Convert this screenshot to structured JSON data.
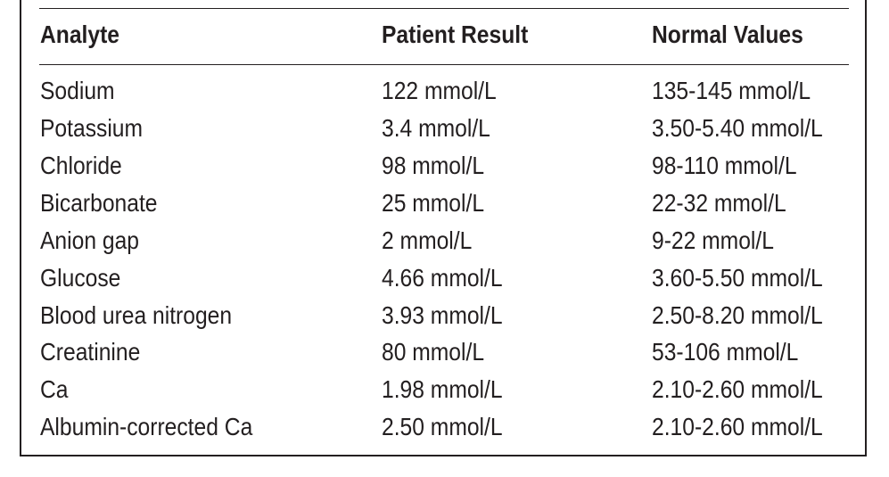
{
  "table": {
    "headers": [
      "Analyte",
      "Patient Result",
      "Normal Values"
    ],
    "rows": [
      [
        "Sodium",
        "122 mmol/L",
        "135-145 mmol/L"
      ],
      [
        "Potassium",
        "3.4 mmol/L",
        "3.50-5.40 mmol/L"
      ],
      [
        "Chloride",
        "98 mmol/L",
        "98-110 mmol/L"
      ],
      [
        "Bicarbonate",
        "25 mmol/L",
        "22-32 mmol/L"
      ],
      [
        "Anion gap",
        "2 mmol/L",
        "9-22 mmol/L"
      ],
      [
        "Glucose",
        "4.66 mmol/L",
        "3.60-5.50 mmol/L"
      ],
      [
        "Blood urea nitrogen",
        "3.93 mmol/L",
        "2.50-8.20 mmol/L"
      ],
      [
        "Creatinine",
        "80 mmol/L",
        "53-106 mmol/L"
      ],
      [
        "Ca",
        "1.98 mmol/L",
        "2.10-2.60 mmol/L"
      ],
      [
        "Albumin-corrected Ca",
        "2.50 mmol/L",
        "2.10-2.60 mmol/L"
      ]
    ]
  },
  "colors": {
    "text": "#231f20",
    "rule": "#231f20",
    "background": "#ffffff"
  }
}
